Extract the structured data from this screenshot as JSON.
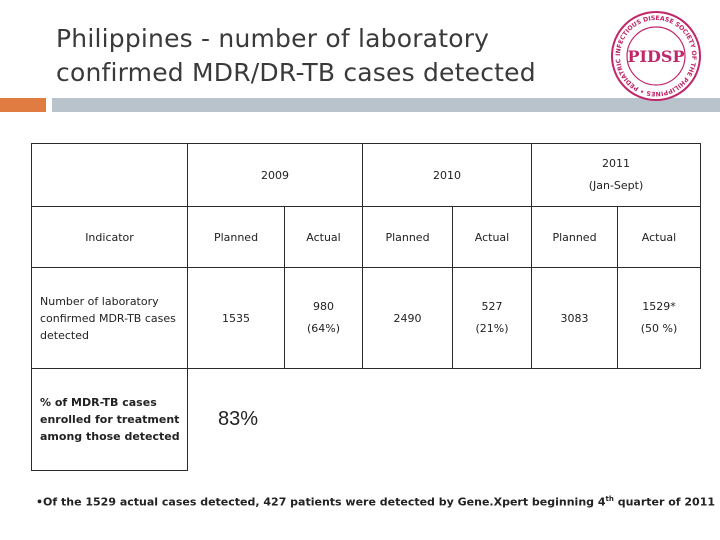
{
  "slide": {
    "title_line1": "Philippines - number of laboratory",
    "title_line2": "confirmed MDR/DR-TB cases detected"
  },
  "logo": {
    "icon": "pidsp-seal-logo",
    "ring_text": "INFECTIOUS DISEASE SOCIETY OF THE PHILIPPINES • PEDIATRIC • 1993 •",
    "center_text": "PIDSP",
    "colors": {
      "ring": "#c0266a",
      "center": "#c0266a"
    }
  },
  "table": {
    "year_2009": "2009",
    "year_2010": "2010",
    "year_2011_line1": "2011",
    "year_2011_line2": "(Jan-Sept)",
    "indicator_header": "Indicator",
    "col_planned": "Planned",
    "col_actual": "Actual",
    "row1": {
      "indicator": "Number of laboratory confirmed MDR-TB cases detected",
      "planned_2009": "1535",
      "actual_2009_value": "980",
      "actual_2009_pct": "(64%)",
      "planned_2010": "2490",
      "actual_2010_value": "527",
      "actual_2010_pct": "(21%)",
      "planned_2011": "3083",
      "actual_2011_value": "1529*",
      "actual_2011_pct": "(50 %)"
    },
    "row2": {
      "indicator": "% of MDR-TB cases enrolled for treatment among those detected",
      "value": "83%"
    }
  },
  "footnote": {
    "text_before_sup": "•Of the 1529 actual cases detected, 427 patients were detected by Gene.Xpert beginning 4",
    "sup": "th",
    "text_after_sup": " quarter of 2011"
  },
  "colors": {
    "accent_band": "#e07b41",
    "gray_band": "#b9c3cc",
    "title": "#3a3a3a"
  }
}
